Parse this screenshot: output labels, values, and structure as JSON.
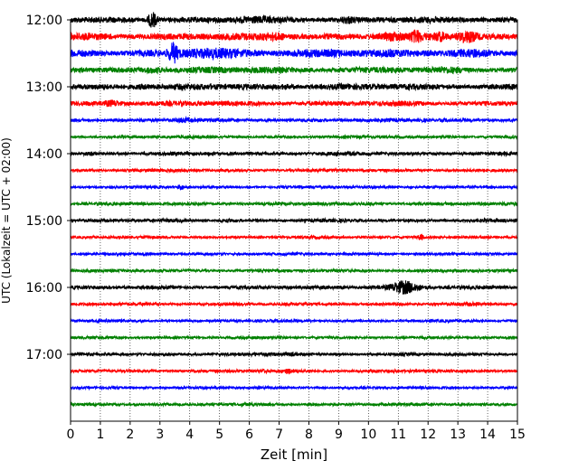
{
  "chart_data": {
    "type": "line",
    "title": "",
    "xlabel": "Zeit  [min]",
    "ylabel": "UTC (Lokalzeit = UTC + 02:00)",
    "xlim": [
      0,
      15
    ],
    "x_ticks": [
      "0",
      "1",
      "2",
      "3",
      "4",
      "5",
      "6",
      "7",
      "8",
      "9",
      "10",
      "11",
      "12",
      "13",
      "14",
      "15"
    ],
    "y_ticks": [
      {
        "label": "12:00",
        "hour": 12.0
      },
      {
        "label": "13:00",
        "hour": 13.0
      },
      {
        "label": "14:00",
        "hour": 14.0
      },
      {
        "label": "15:00",
        "hour": 15.0
      },
      {
        "label": "16:00",
        "hour": 16.0
      },
      {
        "label": "17:00",
        "hour": 17.0
      }
    ],
    "ylim_hours": [
      12.0,
      18.0
    ],
    "y_inverted": true,
    "grid": "vertical dotted",
    "trace_interval_min": 15,
    "traces": [
      {
        "start": "12:00",
        "color": "#000000",
        "noise": 1.0,
        "events": [
          {
            "t": 2.75,
            "amp": 3.2,
            "dur": 0.15
          },
          {
            "t": 9.3,
            "amp": 1.6,
            "dur": 0.2
          },
          {
            "t": 6.2,
            "amp": 1.3,
            "dur": 0.8
          }
        ]
      },
      {
        "start": "12:15",
        "color": "#ff0000",
        "noise": 1.15,
        "events": [
          {
            "t": 6.9,
            "amp": 1.5,
            "dur": 0.3
          },
          {
            "t": 10.8,
            "amp": 1.5,
            "dur": 0.3
          },
          {
            "t": 11.6,
            "amp": 2.0,
            "dur": 0.2
          },
          {
            "t": 12.4,
            "amp": 1.8,
            "dur": 0.2
          },
          {
            "t": 13.3,
            "amp": 2.2,
            "dur": 0.3
          }
        ]
      },
      {
        "start": "12:30",
        "color": "#0000ff",
        "noise": 1.2,
        "events": [
          {
            "t": 3.45,
            "amp": 3.2,
            "dur": 0.15
          },
          {
            "t": 4.5,
            "amp": 1.6,
            "dur": 1.0
          },
          {
            "t": 8.6,
            "amp": 1.4,
            "dur": 1.0
          },
          {
            "t": 13.5,
            "amp": 1.4,
            "dur": 0.5
          }
        ]
      },
      {
        "start": "12:45",
        "color": "#008000",
        "noise": 1.0,
        "events": [
          {
            "t": 2.8,
            "amp": 1.4,
            "dur": 0.4
          },
          {
            "t": 6.6,
            "amp": 1.3,
            "dur": 0.6
          },
          {
            "t": 12.7,
            "amp": 1.3,
            "dur": 0.5
          }
        ]
      },
      {
        "start": "13:00",
        "color": "#000000",
        "noise": 1.0,
        "events": [
          {
            "t": 2.4,
            "amp": 1.3,
            "dur": 0.4
          },
          {
            "t": 7.3,
            "amp": 1.2,
            "dur": 0.4
          }
        ]
      },
      {
        "start": "13:15",
        "color": "#ff0000",
        "noise": 0.85,
        "events": [
          {
            "t": 1.4,
            "amp": 1.8,
            "dur": 0.3
          }
        ]
      },
      {
        "start": "13:30",
        "color": "#0000ff",
        "noise": 0.6,
        "events": [
          {
            "t": 3.8,
            "amp": 1.8,
            "dur": 0.25
          },
          {
            "t": 11.8,
            "amp": 1.4,
            "dur": 0.15
          },
          {
            "t": 12.5,
            "amp": 1.2,
            "dur": 0.15
          }
        ]
      },
      {
        "start": "13:45",
        "color": "#008000",
        "noise": 0.5,
        "events": [
          {
            "t": 11.0,
            "amp": 1.1,
            "dur": 0.2
          }
        ]
      },
      {
        "start": "14:00",
        "color": "#000000",
        "noise": 0.6,
        "events": [
          {
            "t": 0.6,
            "amp": 1.4,
            "dur": 0.2
          },
          {
            "t": 4.8,
            "amp": 1.3,
            "dur": 0.2
          }
        ]
      },
      {
        "start": "14:15",
        "color": "#ff0000",
        "noise": 0.5,
        "events": []
      },
      {
        "start": "14:30",
        "color": "#0000ff",
        "noise": 0.45,
        "events": [
          {
            "t": 3.7,
            "amp": 2.6,
            "dur": 0.1
          }
        ]
      },
      {
        "start": "14:45",
        "color": "#008000",
        "noise": 0.55,
        "events": []
      },
      {
        "start": "15:00",
        "color": "#000000",
        "noise": 0.55,
        "events": [
          {
            "t": 5.2,
            "amp": 1.5,
            "dur": 0.25
          }
        ]
      },
      {
        "start": "15:15",
        "color": "#ff0000",
        "noise": 0.45,
        "events": [
          {
            "t": 11.75,
            "amp": 3.0,
            "dur": 0.1
          },
          {
            "t": 12.2,
            "amp": 1.2,
            "dur": 0.1
          }
        ]
      },
      {
        "start": "15:30",
        "color": "#0000ff",
        "noise": 0.45,
        "events": []
      },
      {
        "start": "15:45",
        "color": "#008000",
        "noise": 0.5,
        "events": [
          {
            "t": 3.0,
            "amp": 1.3,
            "dur": 0.2
          }
        ]
      },
      {
        "start": "16:00",
        "color": "#000000",
        "noise": 0.6,
        "events": [
          {
            "t": 10.2,
            "amp": 1.4,
            "dur": 0.4
          },
          {
            "t": 11.2,
            "amp": 4.0,
            "dur": 0.45
          }
        ]
      },
      {
        "start": "16:15",
        "color": "#ff0000",
        "noise": 0.5,
        "events": [
          {
            "t": 13.5,
            "amp": 1.2,
            "dur": 0.3
          }
        ]
      },
      {
        "start": "16:30",
        "color": "#0000ff",
        "noise": 0.45,
        "events": []
      },
      {
        "start": "16:45",
        "color": "#008000",
        "noise": 0.45,
        "events": []
      },
      {
        "start": "17:00",
        "color": "#000000",
        "noise": 0.5,
        "events": [
          {
            "t": 6.6,
            "amp": 1.3,
            "dur": 0.5
          },
          {
            "t": 7.4,
            "amp": 1.6,
            "dur": 0.2
          }
        ]
      },
      {
        "start": "17:15",
        "color": "#ff0000",
        "noise": 0.5,
        "events": [
          {
            "t": 6.5,
            "amp": 1.4,
            "dur": 0.2
          },
          {
            "t": 7.3,
            "amp": 2.4,
            "dur": 0.1
          },
          {
            "t": 7.55,
            "amp": 1.5,
            "dur": 0.1
          },
          {
            "t": 13.3,
            "amp": 1.2,
            "dur": 0.2
          }
        ]
      },
      {
        "start": "17:30",
        "color": "#0000ff",
        "noise": 0.45,
        "events": []
      },
      {
        "start": "17:45",
        "color": "#008000",
        "noise": 0.5,
        "events": [
          {
            "t": 2.2,
            "amp": 1.2,
            "dur": 0.2
          }
        ]
      }
    ]
  }
}
